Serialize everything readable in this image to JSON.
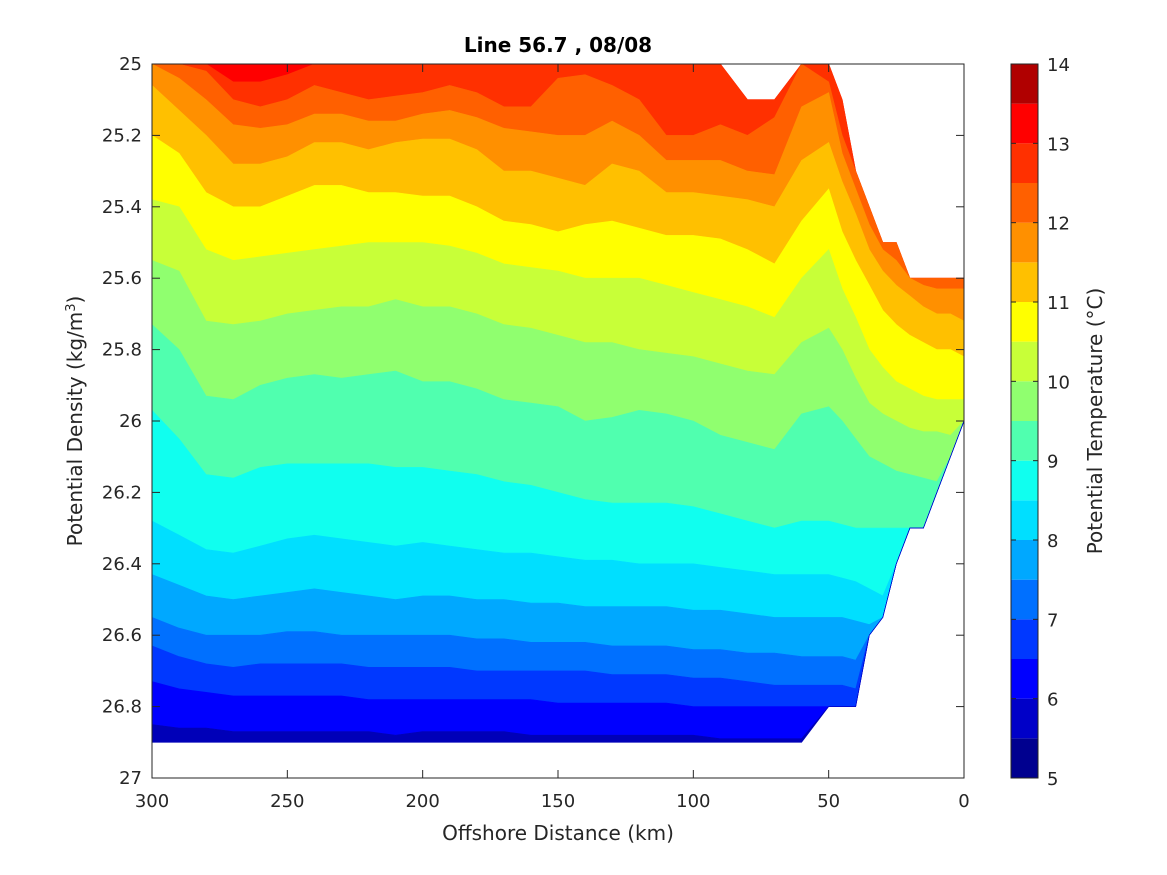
{
  "chart_data": {
    "type": "contour",
    "title": "Line 56.7 , 08/08",
    "xlabel": "Offshore Distance (km)",
    "ylabel": "Potential Density (kg/m",
    "ylabel_sup": "3",
    "ylabel_close": ")",
    "colorbar_label": "Potential Temperature (°C)",
    "xlim": [
      300,
      0
    ],
    "ylim": [
      25,
      27
    ],
    "y_reversed": true,
    "x_reversed": true,
    "x_ticks": [
      300,
      250,
      200,
      150,
      100,
      50,
      0
    ],
    "x_tick_labels": [
      "300",
      "250",
      "200",
      "150",
      "100",
      "50",
      "0"
    ],
    "y_ticks": [
      25,
      25.2,
      25.4,
      25.6,
      25.8,
      26,
      26.2,
      26.4,
      26.6,
      26.8,
      27
    ],
    "y_tick_labels": [
      "25",
      "25.2",
      "25.4",
      "25.6",
      "25.8",
      "26",
      "26.2",
      "26.4",
      "26.6",
      "26.8",
      "27"
    ],
    "colorbar_ticks": [
      5,
      6,
      7,
      8,
      9,
      10,
      11,
      12,
      13,
      14
    ],
    "colorbar_tick_labels": [
      "5",
      "6",
      "7",
      "8",
      "9",
      "10",
      "11",
      "12",
      "13",
      "14"
    ],
    "levels": [
      5,
      5.5,
      6,
      6.5,
      7,
      7.5,
      8,
      8.5,
      9,
      9.5,
      10,
      10.5,
      11,
      11.5,
      12,
      12.5,
      13,
      13.5,
      14
    ],
    "level_colors": [
      "#00008f",
      "#0000cf",
      "#0010ff",
      "#0050ff",
      "#0090ff",
      "#00cfff",
      "#10ffef",
      "#50ffaf",
      "#90ff6f",
      "#cfff30",
      "#ffff00",
      "#ffbf00",
      "#ff8000",
      "#ff4000",
      "#ff0000",
      "#bf0000",
      "#800000",
      "#800000"
    ],
    "x_distance_km": [
      300,
      290,
      280,
      270,
      260,
      250,
      240,
      230,
      220,
      210,
      200,
      190,
      180,
      170,
      160,
      150,
      140,
      130,
      120,
      110,
      100,
      90,
      80,
      70,
      60,
      50,
      45,
      40,
      35,
      30,
      25,
      20,
      15,
      10,
      5,
      0
    ],
    "bottom_density": [
      26.9,
      26.9,
      26.9,
      26.9,
      26.9,
      26.9,
      26.9,
      26.9,
      26.9,
      26.9,
      26.9,
      26.9,
      26.9,
      26.9,
      26.9,
      26.9,
      26.9,
      26.9,
      26.9,
      26.9,
      26.9,
      26.9,
      26.9,
      26.9,
      26.9,
      26.8,
      26.8,
      26.8,
      26.6,
      26.55,
      26.4,
      26.3,
      26.3,
      26.2,
      26.1,
      26.0
    ],
    "top_density": [
      25,
      25,
      25,
      25,
      25,
      25,
      25,
      25,
      25,
      25,
      25,
      25,
      25,
      25,
      25,
      25,
      25,
      25,
      25,
      25,
      25,
      25,
      25.1,
      25.1,
      25.0,
      25.0,
      25.1,
      25.3,
      25.4,
      25.5,
      25.5,
      25.6,
      25.6,
      25.6,
      25.6,
      25.6
    ],
    "isolines_density": {
      "13": [
        25.0,
        25.0,
        25.0,
        25.05,
        25.05,
        25.03,
        25.0,
        25.0,
        25.0,
        25.0,
        25.0,
        25.0,
        25.0,
        25.0,
        25.0,
        25.0,
        25.0,
        25.0,
        25.0,
        25.0,
        25.0,
        25.0,
        25.0,
        25.0,
        25.0,
        25.0,
        25.0,
        25.0,
        25.0,
        25.0,
        25.0,
        25.0,
        25.0,
        25.0,
        25.0,
        25.0
      ],
      "12.5": [
        25.0,
        25.0,
        25.02,
        25.1,
        25.12,
        25.1,
        25.06,
        25.08,
        25.1,
        25.09,
        25.08,
        25.06,
        25.08,
        25.12,
        25.12,
        25.04,
        25.03,
        25.06,
        25.1,
        25.2,
        25.2,
        25.17,
        25.2,
        25.15,
        25.0,
        25.05,
        25.2,
        25.3,
        25.4,
        25.5,
        25.5,
        25.55,
        25.6,
        25.6,
        25.6,
        25.6
      ],
      "12": [
        25.0,
        25.04,
        25.1,
        25.17,
        25.18,
        25.17,
        25.14,
        25.14,
        25.16,
        25.16,
        25.14,
        25.13,
        25.15,
        25.18,
        25.19,
        25.2,
        25.2,
        25.16,
        25.2,
        25.27,
        25.27,
        25.27,
        25.3,
        25.31,
        25.12,
        25.08,
        25.25,
        25.35,
        25.45,
        25.52,
        25.55,
        25.6,
        25.62,
        25.63,
        25.63,
        25.63
      ],
      "11.5": [
        25.06,
        25.13,
        25.2,
        25.28,
        25.28,
        25.26,
        25.22,
        25.22,
        25.24,
        25.22,
        25.21,
        25.21,
        25.24,
        25.3,
        25.3,
        25.32,
        25.34,
        25.28,
        25.3,
        25.36,
        25.36,
        25.37,
        25.38,
        25.4,
        25.27,
        25.22,
        25.33,
        25.42,
        25.52,
        25.58,
        25.62,
        25.65,
        25.68,
        25.7,
        25.7,
        25.72
      ],
      "11": [
        25.2,
        25.25,
        25.36,
        25.4,
        25.4,
        25.37,
        25.34,
        25.34,
        25.36,
        25.36,
        25.37,
        25.37,
        25.4,
        25.44,
        25.45,
        25.47,
        25.45,
        25.44,
        25.46,
        25.48,
        25.48,
        25.49,
        25.52,
        25.56,
        25.44,
        25.35,
        25.47,
        25.55,
        25.62,
        25.69,
        25.73,
        25.76,
        25.78,
        25.8,
        25.8,
        25.82
      ],
      "10.5": [
        25.38,
        25.4,
        25.52,
        25.55,
        25.54,
        25.53,
        25.52,
        25.51,
        25.5,
        25.5,
        25.5,
        25.51,
        25.53,
        25.56,
        25.57,
        25.58,
        25.6,
        25.6,
        25.6,
        25.62,
        25.64,
        25.66,
        25.68,
        25.71,
        25.6,
        25.52,
        25.63,
        25.71,
        25.8,
        25.85,
        25.89,
        25.91,
        25.93,
        25.94,
        25.94,
        25.94
      ],
      "10": [
        25.55,
        25.58,
        25.72,
        25.73,
        25.72,
        25.7,
        25.69,
        25.68,
        25.68,
        25.66,
        25.68,
        25.68,
        25.7,
        25.73,
        25.74,
        25.76,
        25.78,
        25.78,
        25.8,
        25.81,
        25.82,
        25.84,
        25.86,
        25.87,
        25.78,
        25.74,
        25.8,
        25.88,
        25.95,
        25.98,
        26.0,
        26.02,
        26.03,
        26.03,
        26.04,
        26.05
      ],
      "9.5": [
        25.73,
        25.8,
        25.93,
        25.94,
        25.9,
        25.88,
        25.87,
        25.88,
        25.87,
        25.86,
        25.89,
        25.89,
        25.91,
        25.94,
        25.95,
        25.96,
        26.0,
        25.99,
        25.97,
        25.98,
        26.0,
        26.04,
        26.06,
        26.08,
        25.98,
        25.96,
        26.0,
        26.05,
        26.1,
        26.12,
        26.14,
        26.15,
        26.16,
        26.17,
        26.18,
        26.18
      ],
      "9": [
        25.97,
        26.05,
        26.15,
        26.16,
        26.13,
        26.12,
        26.12,
        26.12,
        26.12,
        26.13,
        26.13,
        26.14,
        26.15,
        26.17,
        26.18,
        26.2,
        26.22,
        26.23,
        26.23,
        26.23,
        26.24,
        26.26,
        26.28,
        26.3,
        26.28,
        26.28,
        26.29,
        26.3,
        26.3,
        26.3,
        26.3,
        26.3,
        26.3,
        26.3,
        26.3,
        26.3
      ],
      "8.5": [
        26.28,
        26.32,
        26.36,
        26.37,
        26.35,
        26.33,
        26.32,
        26.33,
        26.34,
        26.35,
        26.34,
        26.35,
        26.36,
        26.37,
        26.37,
        26.38,
        26.39,
        26.39,
        26.4,
        26.4,
        26.4,
        26.41,
        26.42,
        26.43,
        26.43,
        26.43,
        26.44,
        26.45,
        26.47,
        26.49,
        26.5,
        26.5,
        26.5,
        26.5,
        26.5,
        26.5
      ],
      "8": [
        26.43,
        26.46,
        26.49,
        26.5,
        26.49,
        26.48,
        26.47,
        26.48,
        26.49,
        26.5,
        26.49,
        26.49,
        26.5,
        26.5,
        26.51,
        26.51,
        26.52,
        26.52,
        26.52,
        26.52,
        26.53,
        26.53,
        26.54,
        26.55,
        26.55,
        26.55,
        26.55,
        26.56,
        26.57,
        26.58,
        26.6,
        26.6,
        26.6,
        26.6,
        26.6,
        26.6
      ],
      "7.5": [
        26.55,
        26.58,
        26.6,
        26.6,
        26.6,
        26.59,
        26.59,
        26.6,
        26.6,
        26.6,
        26.6,
        26.6,
        26.61,
        26.61,
        26.62,
        26.62,
        26.62,
        26.63,
        26.63,
        26.63,
        26.64,
        26.64,
        26.65,
        26.65,
        26.66,
        26.66,
        26.66,
        26.67,
        26.68,
        26.7,
        26.7,
        26.7,
        26.7,
        26.7,
        26.7,
        26.7
      ],
      "7": [
        26.63,
        26.66,
        26.68,
        26.69,
        26.68,
        26.68,
        26.68,
        26.68,
        26.69,
        26.69,
        26.69,
        26.69,
        26.7,
        26.7,
        26.7,
        26.7,
        26.7,
        26.71,
        26.71,
        26.71,
        26.72,
        26.72,
        26.73,
        26.74,
        26.74,
        26.74,
        26.74,
        26.75,
        26.76,
        26.76,
        26.76,
        26.76,
        26.76,
        26.76,
        26.76,
        26.76
      ],
      "6.5": [
        26.73,
        26.75,
        26.76,
        26.77,
        26.77,
        26.77,
        26.77,
        26.77,
        26.78,
        26.78,
        26.78,
        26.78,
        26.78,
        26.78,
        26.78,
        26.79,
        26.79,
        26.79,
        26.79,
        26.79,
        26.8,
        26.8,
        26.8,
        26.8,
        26.8,
        26.8,
        26.8,
        26.8,
        26.8,
        26.8,
        26.8,
        26.8,
        26.8,
        26.8,
        26.8,
        26.8
      ],
      "6": [
        26.85,
        26.86,
        26.86,
        26.87,
        26.87,
        26.87,
        26.87,
        26.87,
        26.87,
        26.88,
        26.87,
        26.87,
        26.87,
        26.87,
        26.88,
        26.88,
        26.88,
        26.88,
        26.88,
        26.88,
        26.88,
        26.89,
        26.89,
        26.89,
        26.89,
        26.89,
        26.89,
        26.89,
        26.89,
        26.89,
        26.89,
        26.89,
        26.89,
        26.89,
        26.89,
        26.89
      ]
    }
  }
}
